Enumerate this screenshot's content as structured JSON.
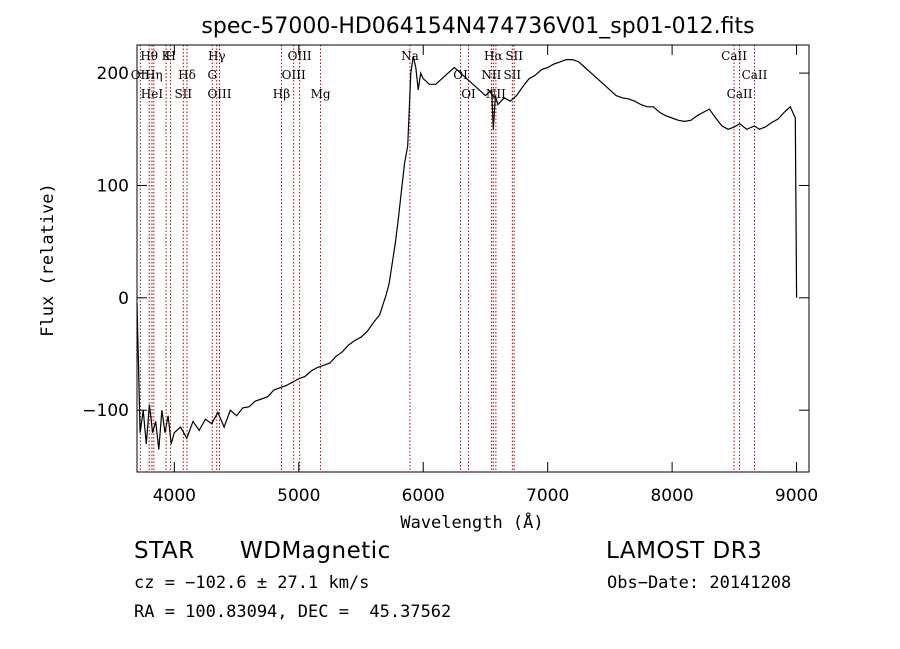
{
  "chart_data": {
    "type": "line",
    "title": "spec-57000-HD064154N474736V01_sp01-012.fits",
    "xlabel": "Wavelength (Å)",
    "ylabel": "Flux (relative)",
    "xlim": [
      3700,
      9100
    ],
    "ylim": [
      -155,
      225
    ],
    "xticks": [
      4000,
      5000,
      6000,
      7000,
      8000,
      9000
    ],
    "yticks": [
      -100,
      0,
      100,
      200
    ],
    "grid": false,
    "series": [
      {
        "x": [
          3700,
          3725,
          3750,
          3775,
          3800,
          3825,
          3850,
          3875,
          3900,
          3925,
          3950,
          3975,
          4000,
          4050,
          4100,
          4150,
          4200,
          4250,
          4300,
          4350,
          4400,
          4450,
          4500,
          4550,
          4600,
          4650,
          4700,
          4750,
          4800,
          4850,
          4900,
          4950,
          5000,
          5050,
          5100,
          5150,
          5200,
          5250,
          5300,
          5350,
          5400,
          5450,
          5500,
          5550,
          5600,
          5650,
          5700,
          5725,
          5750,
          5775,
          5800,
          5825,
          5850,
          5875,
          5900,
          5920,
          5940,
          5960,
          5980,
          6000,
          6050,
          6100,
          6150,
          6200,
          6250,
          6300,
          6350,
          6400,
          6450,
          6500,
          6550,
          6563,
          6580,
          6600,
          6650,
          6700,
          6750,
          6800,
          6850,
          6900,
          6950,
          7000,
          7050,
          7100,
          7150,
          7200,
          7250,
          7300,
          7350,
          7400,
          7450,
          7500,
          7550,
          7600,
          7650,
          7700,
          7750,
          7800,
          7850,
          7900,
          7950,
          8000,
          8050,
          8100,
          8150,
          8200,
          8250,
          8300,
          8350,
          8400,
          8450,
          8500,
          8542,
          8600,
          8662,
          8700,
          8750,
          8800,
          8850,
          8900,
          8950,
          8990,
          9000
        ],
        "y": [
          -5,
          -120,
          -100,
          -130,
          -95,
          -120,
          -110,
          -135,
          -100,
          -120,
          -105,
          -130,
          -120,
          -115,
          -125,
          -110,
          -118,
          -108,
          -112,
          -102,
          -115,
          -100,
          -105,
          -98,
          -97,
          -92,
          -90,
          -88,
          -82,
          -80,
          -78,
          -75,
          -72,
          -70,
          -65,
          -62,
          -60,
          -58,
          -52,
          -48,
          -42,
          -38,
          -35,
          -30,
          -22,
          -15,
          2,
          12,
          30,
          48,
          70,
          95,
          120,
          135,
          200,
          215,
          205,
          185,
          200,
          195,
          190,
          190,
          195,
          200,
          205,
          200,
          195,
          190,
          185,
          180,
          185,
          150,
          180,
          172,
          178,
          175,
          180,
          188,
          195,
          198,
          203,
          205,
          208,
          210,
          212,
          212,
          210,
          205,
          200,
          195,
          190,
          185,
          180,
          178,
          177,
          175,
          172,
          170,
          170,
          165,
          162,
          160,
          158,
          157,
          158,
          162,
          165,
          168,
          160,
          153,
          150,
          152,
          155,
          150,
          153,
          150,
          152,
          156,
          159,
          165,
          170,
          160,
          0
        ]
      }
    ],
    "line_markers": [
      {
        "label": "Hθ",
        "x": 3798
      },
      {
        "label": "OII",
        "x": 3727
      },
      {
        "label": "HeI",
        "x": 3820
      },
      {
        "label": "K",
        "x": 3934
      },
      {
        "label": "Hη",
        "x": 3835
      },
      {
        "label": "SII",
        "x": 4072
      },
      {
        "label": "H",
        "x": 3970
      },
      {
        "label": "Hδ",
        "x": 4102
      },
      {
        "label": "OIII",
        "x": 4363
      },
      {
        "label": "Hγ",
        "x": 4341
      },
      {
        "label": "G",
        "x": 4305
      },
      {
        "label": "Hβ",
        "x": 4861
      },
      {
        "label": "OIII",
        "x": 5007
      },
      {
        "label": "OIII",
        "x": 4959
      },
      {
        "label": "Mg",
        "x": 5175
      },
      {
        "label": "Na",
        "x": 5893
      },
      {
        "label": "OI",
        "x": 6300
      },
      {
        "label": "OI",
        "x": 6364
      },
      {
        "label": "Hα",
        "x": 6563
      },
      {
        "label": "SII",
        "x": 6716
      },
      {
        "label": "NII",
        "x": 6584
      },
      {
        "label": "SII",
        "x": 6731
      },
      {
        "label": "NII",
        "x": 6548
      },
      {
        "label": "CaII",
        "x": 8542
      },
      {
        "label": "CaII",
        "x": 8498
      },
      {
        "label": "CaII",
        "x": 8662
      }
    ]
  },
  "info": {
    "object_class": "STAR",
    "subclass": "WDMagnetic",
    "survey": "LAMOST DR3",
    "redshift": "cz = −102.6 ± 27.1 km/s",
    "obs_date": "Obs−Date: 20141208",
    "coords": "RA = 100.83094, DEC =  45.37562"
  }
}
